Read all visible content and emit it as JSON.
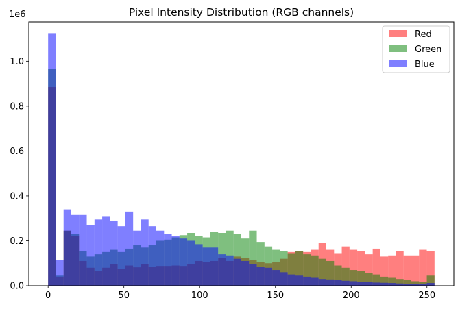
{
  "chart_data": {
    "type": "bar",
    "title": "Pixel Intensity Distribution (RGB channels)",
    "xlabel": "",
    "ylabel": "",
    "y_offset_text": "1e6",
    "xlim": [
      -12.75,
      267.75
    ],
    "ylim": [
      0,
      1175000
    ],
    "x_ticks": [
      0,
      50,
      100,
      150,
      200,
      250
    ],
    "y_ticks": [
      0.0,
      0.2,
      0.4,
      0.6,
      0.8,
      1.0
    ],
    "y_tick_labels": [
      "0.0",
      "0.2",
      "0.4",
      "0.6",
      "0.8",
      "1.0"
    ],
    "bins": 50,
    "bin_start": 0,
    "bin_end": 255,
    "legend_position": "top-right",
    "alpha": 0.5,
    "series": [
      {
        "name": "Red",
        "color": "#ff0000",
        "values": [
          885000,
          40000,
          245000,
          220000,
          110000,
          80000,
          65000,
          80000,
          95000,
          75000,
          90000,
          82000,
          95000,
          85000,
          88000,
          88000,
          90000,
          88000,
          95000,
          110000,
          105000,
          110000,
          125000,
          110000,
          130000,
          125000,
          115000,
          105000,
          100000,
          105000,
          120000,
          150000,
          155000,
          150000,
          160000,
          190000,
          160000,
          145000,
          175000,
          160000,
          155000,
          140000,
          165000,
          130000,
          135000,
          155000,
          135000,
          135000,
          160000,
          155000
        ]
      },
      {
        "name": "Green",
        "color": "#008000",
        "values": [
          965000,
          45000,
          245000,
          230000,
          155000,
          130000,
          140000,
          150000,
          160000,
          150000,
          165000,
          180000,
          170000,
          180000,
          200000,
          205000,
          215000,
          225000,
          235000,
          220000,
          215000,
          240000,
          235000,
          245000,
          230000,
          210000,
          245000,
          195000,
          175000,
          160000,
          155000,
          145000,
          155000,
          140000,
          135000,
          120000,
          110000,
          90000,
          80000,
          70000,
          65000,
          55000,
          50000,
          40000,
          35000,
          30000,
          25000,
          20000,
          17000,
          45000
        ]
      },
      {
        "name": "Blue",
        "color": "#0000ff",
        "values": [
          1125000,
          115000,
          340000,
          315000,
          315000,
          270000,
          295000,
          310000,
          290000,
          265000,
          330000,
          245000,
          295000,
          265000,
          245000,
          230000,
          220000,
          210000,
          200000,
          185000,
          170000,
          170000,
          140000,
          135000,
          120000,
          110000,
          95000,
          85000,
          80000,
          70000,
          60000,
          50000,
          45000,
          40000,
          35000,
          30000,
          28000,
          25000,
          22000,
          20000,
          18000,
          16000,
          14000,
          13000,
          12000,
          10000,
          9000,
          8000,
          7000,
          12000
        ]
      }
    ]
  }
}
